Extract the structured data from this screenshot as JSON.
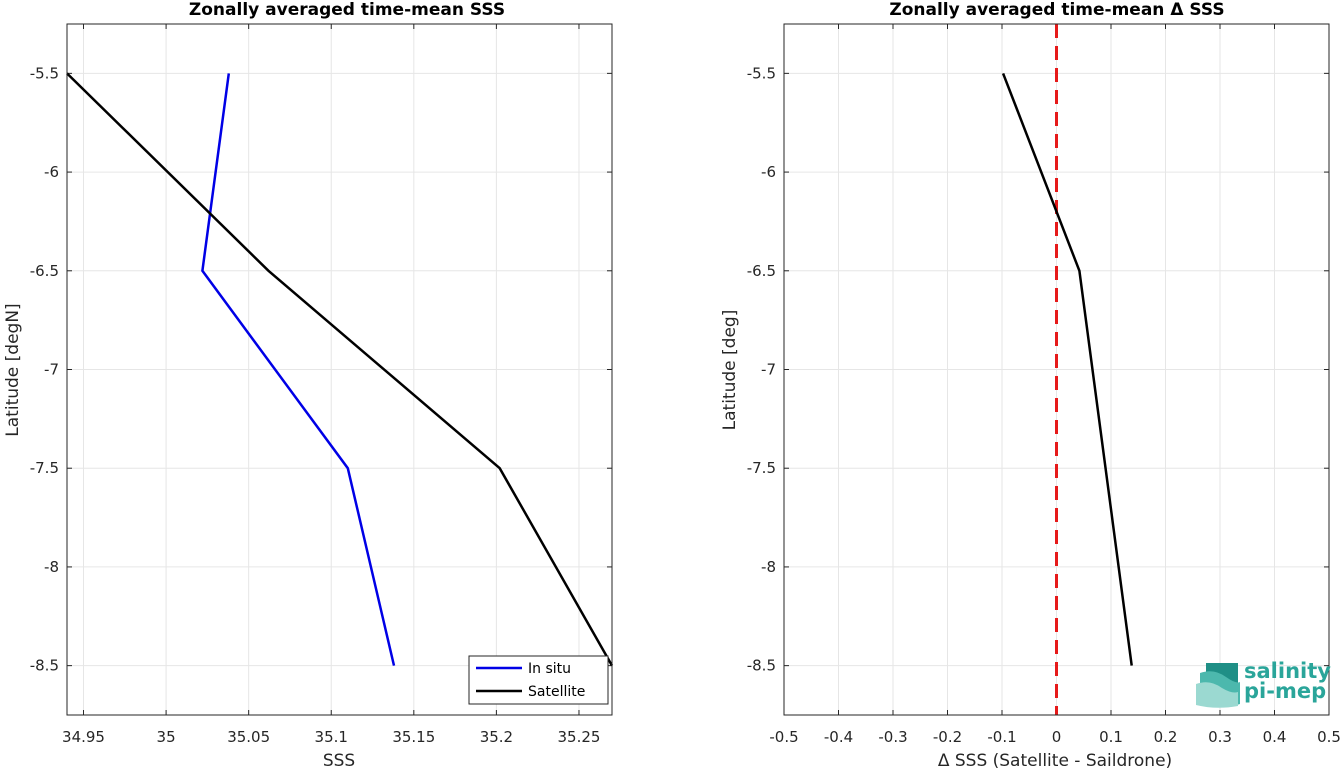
{
  "chart_data": [
    {
      "type": "line",
      "title": "Zonally averaged time-mean SSS",
      "xlabel": "SSS",
      "ylabel": "Latitude [degN]",
      "xlim": [
        34.94,
        35.27
      ],
      "ylim": [
        -8.75,
        -5.25
      ],
      "xticks": [
        34.95,
        35,
        35.05,
        35.1,
        35.15,
        35.2,
        35.25
      ],
      "xtick_labels": [
        "34.95",
        "35",
        "35.05",
        "35.1",
        "35.15",
        "35.2",
        "35.25"
      ],
      "yticks": [
        -5.5,
        -6,
        -6.5,
        -7,
        -7.5,
        -8,
        -8.5
      ],
      "ytick_labels": [
        "-5.5",
        "-6",
        "-6.5",
        "-7",
        "-7.5",
        "-8",
        "-8.5"
      ],
      "grid": true,
      "legend_position": "bottom-right",
      "series": [
        {
          "name": "In situ",
          "color": "#0000e6",
          "x": [
            35.038,
            35.022,
            35.11,
            35.138
          ],
          "y": [
            -5.5,
            -6.5,
            -7.5,
            -8.5
          ]
        },
        {
          "name": "Satellite",
          "color": "#000000",
          "x": [
            34.94,
            35.062,
            35.202,
            35.27
          ],
          "y": [
            -5.5,
            -6.5,
            -7.5,
            -8.5
          ]
        }
      ]
    },
    {
      "type": "line",
      "title": "Zonally averaged time-mean Δ SSS",
      "xlabel": "Δ SSS (Satellite - Saildrone)",
      "ylabel": "Latitude [deg]",
      "xlim": [
        -0.5,
        0.5
      ],
      "ylim": [
        -8.75,
        -5.25
      ],
      "xticks": [
        -0.5,
        -0.4,
        -0.3,
        -0.2,
        -0.1,
        0,
        0.1,
        0.2,
        0.3,
        0.4,
        0.5
      ],
      "xtick_labels": [
        "-0.5",
        "-0.4",
        "-0.3",
        "-0.2",
        "-0.1",
        "0",
        "0.1",
        "0.2",
        "0.3",
        "0.4",
        "0.5"
      ],
      "yticks": [
        -5.5,
        -6,
        -6.5,
        -7,
        -7.5,
        -8,
        -8.5
      ],
      "ytick_labels": [
        "-5.5",
        "-6",
        "-6.5",
        "-7",
        "-7.5",
        "-8",
        "-8.5"
      ],
      "grid": true,
      "reference_line": {
        "x": 0,
        "color": "#e61a1a",
        "style": "dashed"
      },
      "series": [
        {
          "color": "#000000",
          "x": [
            -0.098,
            0.042,
            0.138
          ],
          "y": [
            -5.5,
            -6.5,
            -8.5
          ]
        }
      ]
    }
  ],
  "logo": {
    "line1": "salinity",
    "line2": "pi-mep",
    "color": "#2aa59a"
  }
}
